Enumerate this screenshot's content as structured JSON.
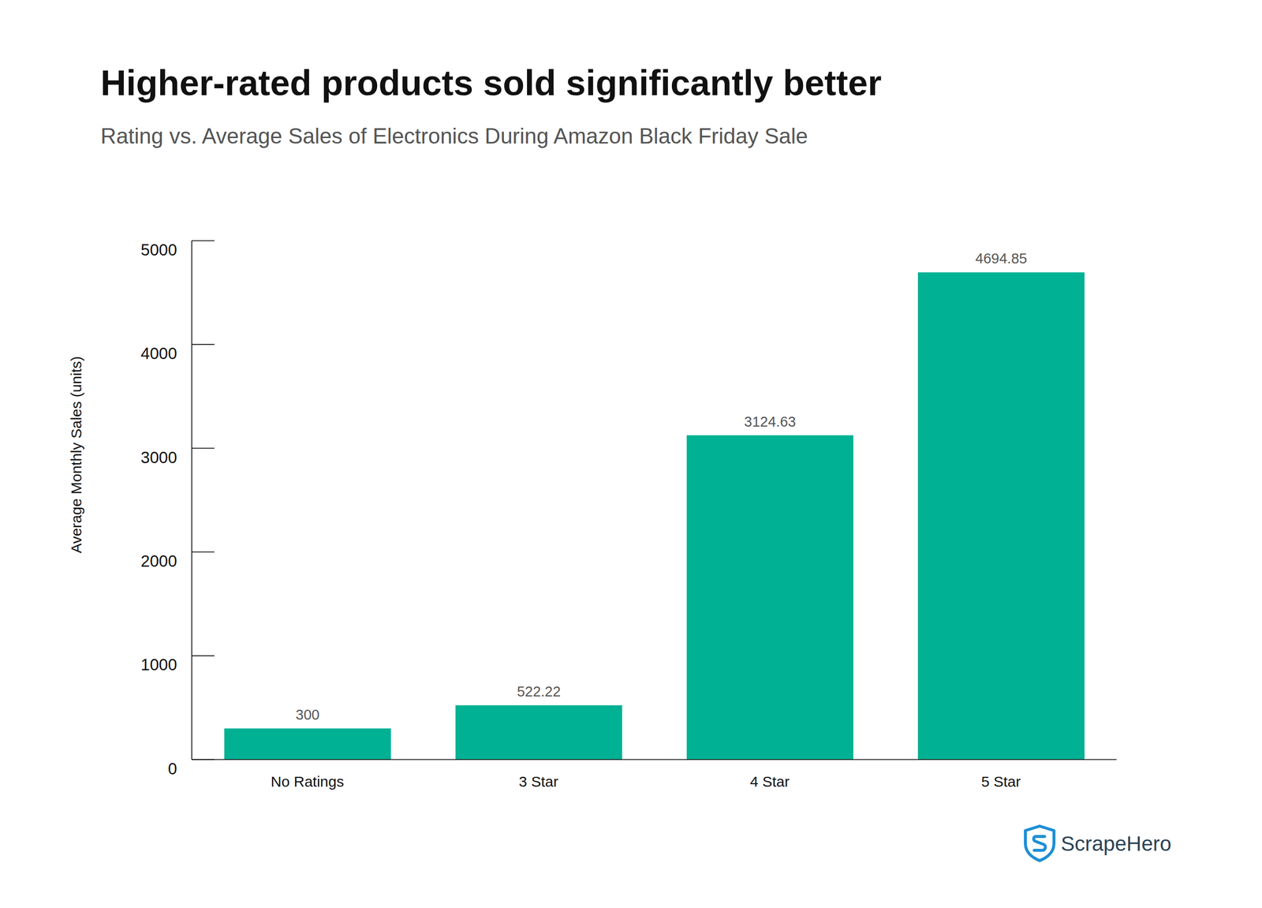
{
  "chart_data": {
    "type": "bar",
    "title": "Higher-rated products sold significantly better",
    "subtitle": "Rating vs. Average Sales of Electronics During Amazon Black Friday Sale",
    "y_label": "Average Monthly Sales (units)",
    "categories": [
      "No Ratings",
      "3 Star",
      "4 Star",
      "5 Star"
    ],
    "values": [
      300,
      522.22,
      3124.63,
      4694.85
    ],
    "color": "#00b194",
    "ylim": [
      0,
      5000
    ],
    "yticks": [
      0,
      1000,
      2000,
      3000,
      4000,
      5000
    ],
    "grid": false,
    "data_labels": true,
    "annotations": [
      "ScrapeHero"
    ]
  }
}
